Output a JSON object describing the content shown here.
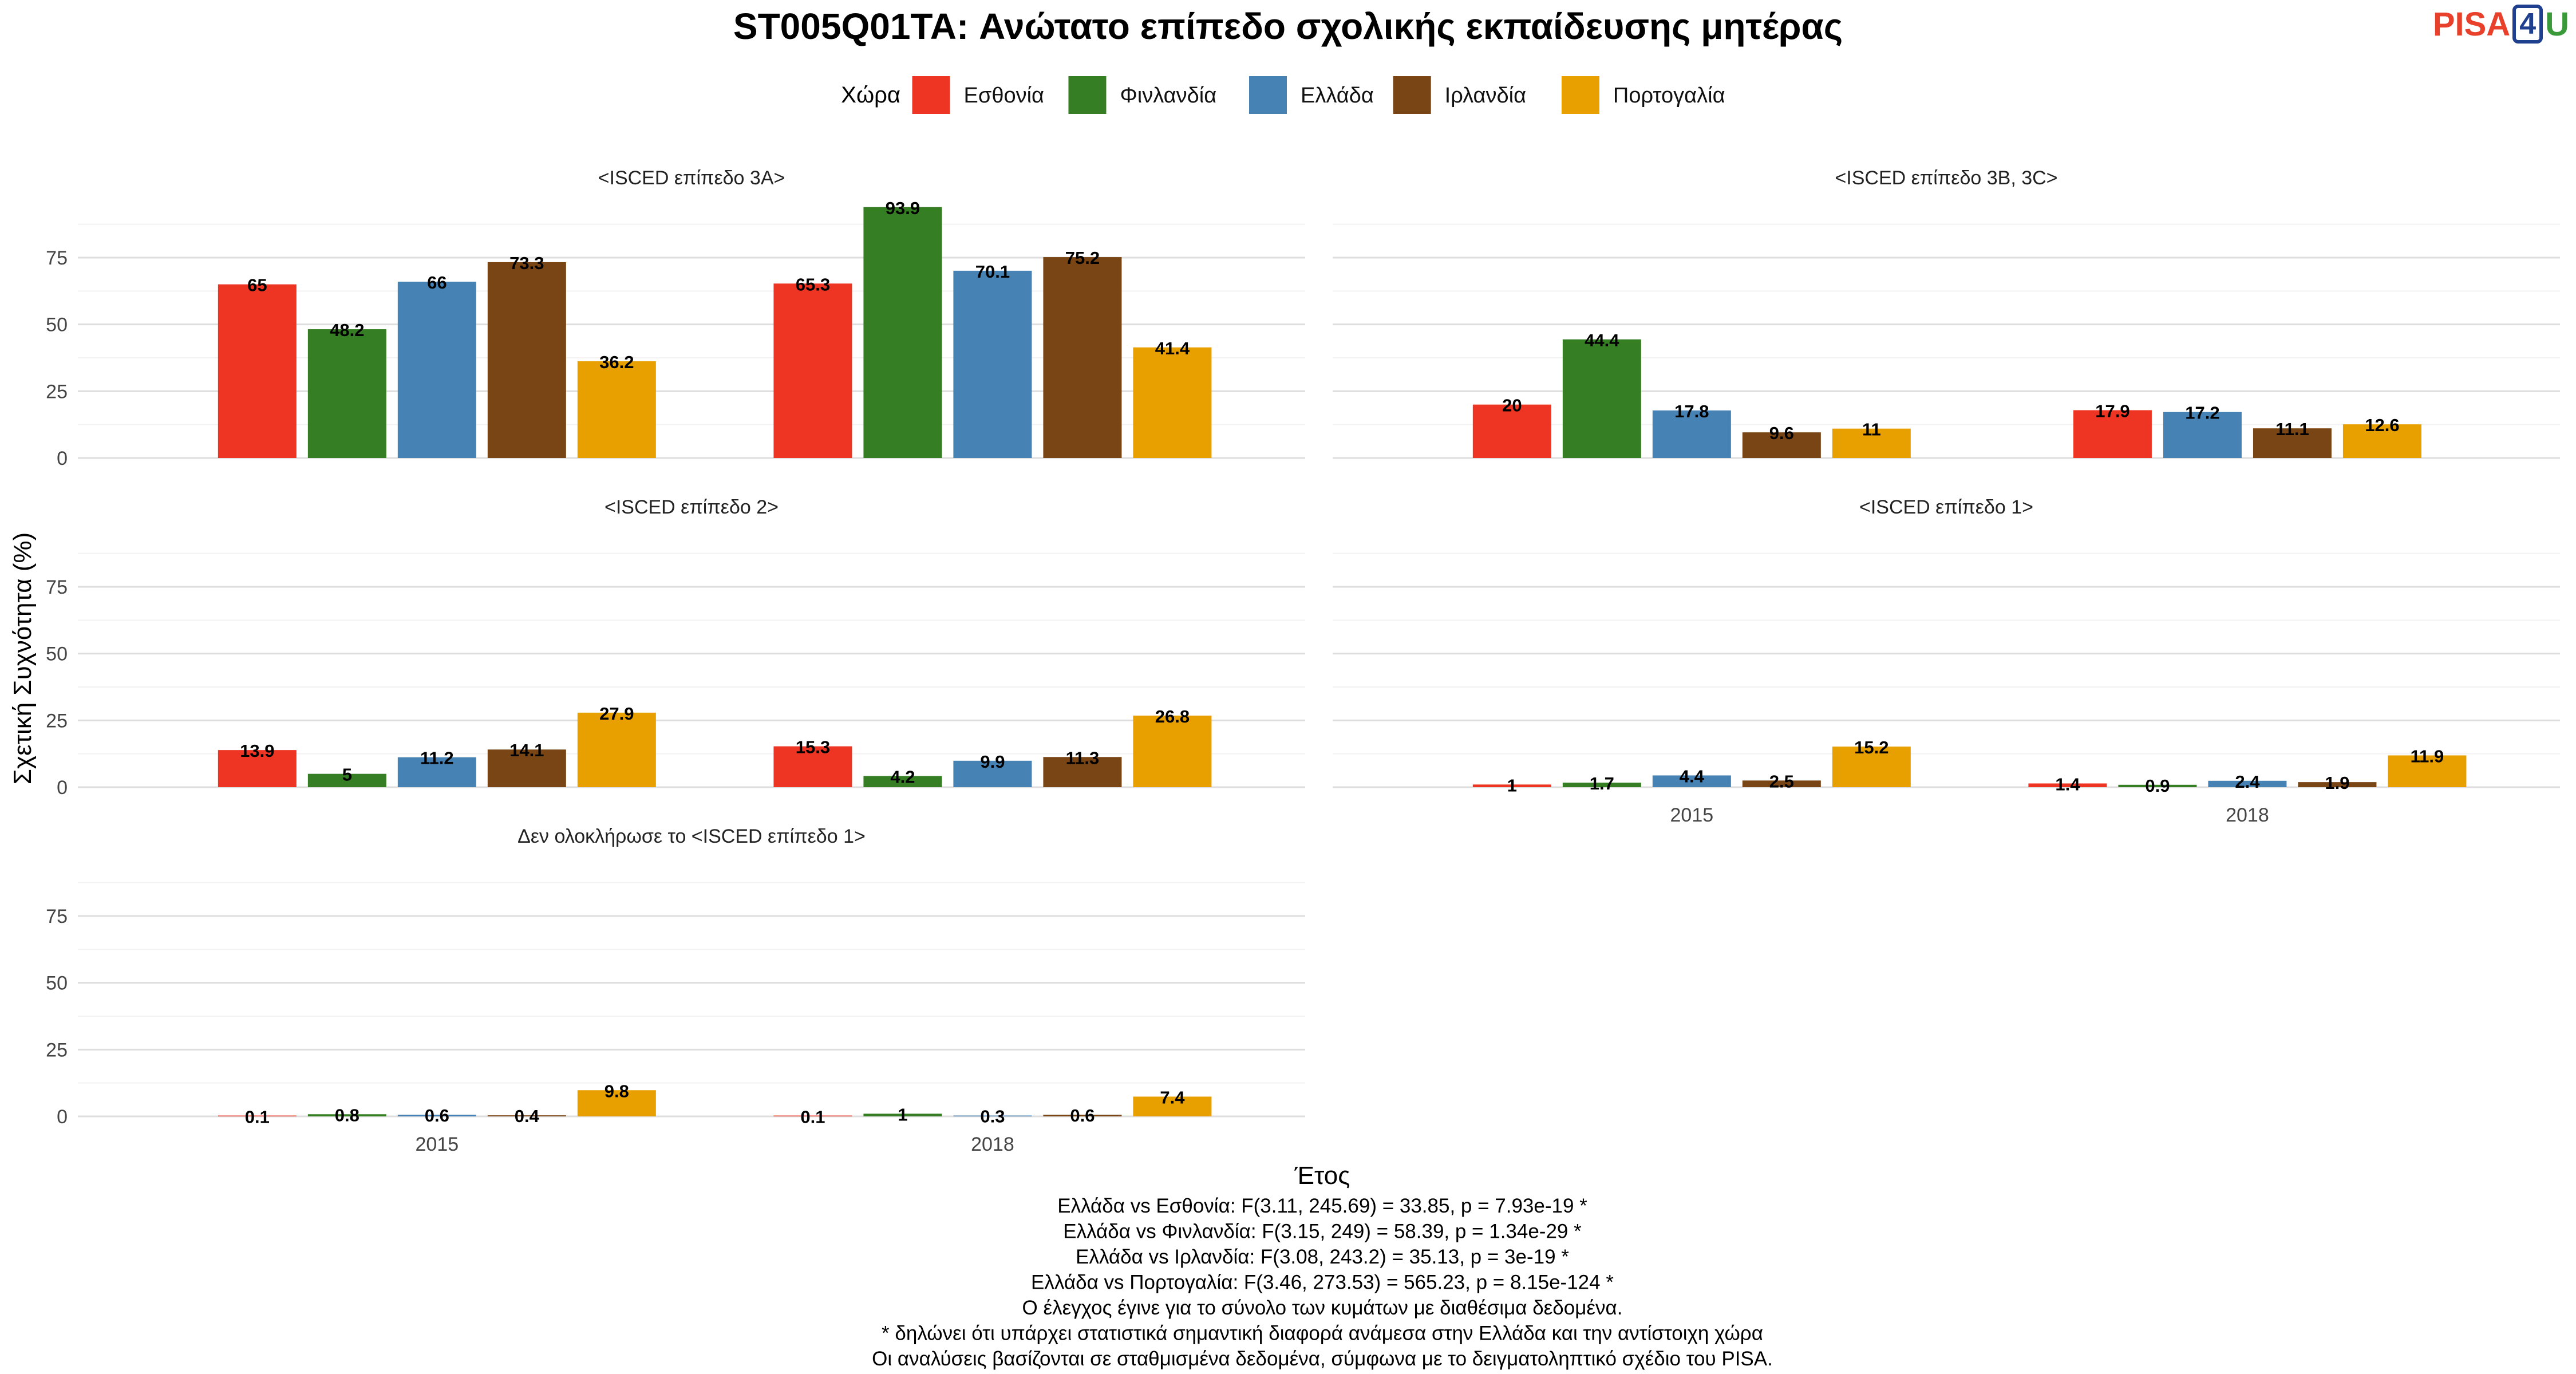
{
  "logo": {
    "pisa": "PISA",
    "four": "4",
    "u": "U"
  },
  "chart_data": {
    "type": "bar",
    "title": "ST005Q01TA: Ανώτατο επίπεδο σχολικής εκπαίδευσης μητέρας",
    "xlabel": "Έτος",
    "ylabel": "Σχετική Συχνότητα (%)",
    "ylim": [
      0,
      100
    ],
    "yticks": [
      0,
      25,
      50,
      75
    ],
    "categories": [
      "2015",
      "2018"
    ],
    "legend": {
      "title": "Χώρα",
      "placement": "top",
      "entries": [
        {
          "name": "Εσθονία",
          "color": "#ee3524"
        },
        {
          "name": "Φινλανδία",
          "color": "#367e23"
        },
        {
          "name": "Ελλάδα",
          "color": "#4682b4"
        },
        {
          "name": "Ιρλανδία",
          "color": "#7a4515"
        },
        {
          "name": "Πορτογαλία",
          "color": "#e8a000"
        }
      ]
    },
    "grid": true,
    "panels": [
      {
        "title": "<ISCED επίπεδο 3A>",
        "series": [
          {
            "name": "Εσθονία",
            "values": [
              65,
              65.3
            ]
          },
          {
            "name": "Φινλανδία",
            "values": [
              48.2,
              93.9
            ]
          },
          {
            "name": "Ελλάδα",
            "values": [
              66,
              70.1
            ]
          },
          {
            "name": "Ιρλανδία",
            "values": [
              73.3,
              75.2
            ]
          },
          {
            "name": "Πορτογαλία",
            "values": [
              36.2,
              41.4
            ]
          }
        ]
      },
      {
        "title": "<ISCED επίπεδο 3B, 3C>",
        "series": [
          {
            "name": "Εσθονία",
            "values": [
              20,
              17.9
            ]
          },
          {
            "name": "Φινλανδία",
            "values": [
              44.4,
              null
            ]
          },
          {
            "name": "Ελλάδα",
            "values": [
              17.8,
              17.2
            ]
          },
          {
            "name": "Ιρλανδία",
            "values": [
              9.6,
              11.1
            ]
          },
          {
            "name": "Πορτογαλία",
            "values": [
              11,
              12.6
            ]
          }
        ]
      },
      {
        "title": "<ISCED επίπεδο 2>",
        "series": [
          {
            "name": "Εσθονία",
            "values": [
              13.9,
              15.3
            ]
          },
          {
            "name": "Φινλανδία",
            "values": [
              5,
              4.2
            ]
          },
          {
            "name": "Ελλάδα",
            "values": [
              11.2,
              9.9
            ]
          },
          {
            "name": "Ιρλανδία",
            "values": [
              14.1,
              11.3
            ]
          },
          {
            "name": "Πορτογαλία",
            "values": [
              27.9,
              26.8
            ]
          }
        ]
      },
      {
        "title": "<ISCED επίπεδο 1>",
        "series": [
          {
            "name": "Εσθονία",
            "values": [
              1,
              1.4
            ]
          },
          {
            "name": "Φινλανδία",
            "values": [
              1.7,
              0.9
            ]
          },
          {
            "name": "Ελλάδα",
            "values": [
              4.4,
              2.4
            ]
          },
          {
            "name": "Ιρλανδία",
            "values": [
              2.5,
              1.9
            ]
          },
          {
            "name": "Πορτογαλία",
            "values": [
              15.2,
              11.9
            ]
          }
        ]
      },
      {
        "title": "Δεν ολοκλήρωσε το <ISCED επίπεδο 1>",
        "series": [
          {
            "name": "Εσθονία",
            "values": [
              0.1,
              0.1
            ]
          },
          {
            "name": "Φινλανδία",
            "values": [
              0.8,
              1
            ]
          },
          {
            "name": "Ελλάδα",
            "values": [
              0.6,
              0.3
            ]
          },
          {
            "name": "Ιρλανδία",
            "values": [
              0.4,
              0.6
            ]
          },
          {
            "name": "Πορτογαλία",
            "values": [
              9.8,
              7.4
            ]
          }
        ]
      }
    ],
    "caption": [
      "Ελλάδα vs Εσθονία: F(3.11, 245.69) = 33.85, p = 7.93e-19 *",
      "Ελλάδα vs Φινλανδία: F(3.15, 249) = 58.39, p = 1.34e-29 *",
      "Ελλάδα vs Ιρλανδία: F(3.08, 243.2) = 35.13, p = 3e-19 *",
      "Ελλάδα vs Πορτογαλία: F(3.46, 273.53) = 565.23, p = 8.15e-124 *",
      "Ο έλεγχος έγινε για το σύνολο των κυμάτων με διαθέσιμα δεδομένα.",
      "* δηλώνει ότι υπάρχει στατιστικά σημαντική διαφορά ανάμεσα στην Ελλάδα και την αντίστοιχη χώρα",
      "Οι αναλύσεις βασίζονται σε σταθμισμένα δεδομένα, σύμφωνα με το δειγματοληπτικό σχέδιο του PISA."
    ]
  }
}
